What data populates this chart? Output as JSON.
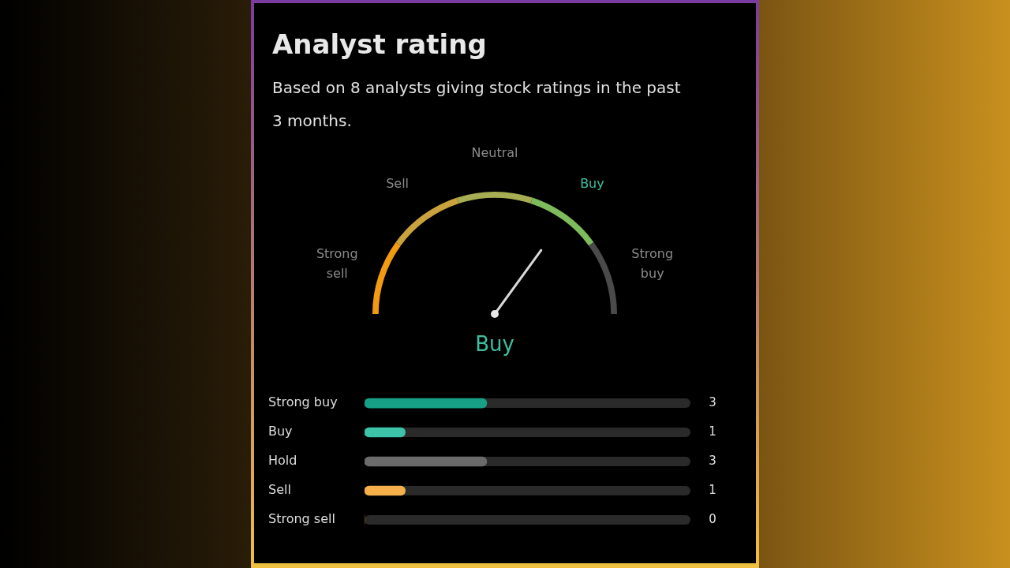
{
  "chart_data": [
    {
      "type": "donut",
      "title": "Analyst rating",
      "subtitle": "Based on 8 analysts giving stock ratings in the past 3 months.",
      "categories": [
        "Strong sell",
        "Sell",
        "Neutral",
        "Buy",
        "Strong buy"
      ],
      "values": [
        20,
        20,
        20,
        20,
        20
      ],
      "colors": [
        "#f29a12",
        "#c9a13d",
        "#a6ad52",
        "#7dbb5c",
        "#4a4a4a"
      ],
      "needle": "Buy"
    },
    {
      "type": "bar",
      "orientation": "horizontal",
      "categories": [
        "Strong buy",
        "Buy",
        "Hold",
        "Sell",
        "Strong sell"
      ],
      "values": [
        3,
        1,
        3,
        1,
        0
      ],
      "colors": [
        "#17a086",
        "#3dc4a8",
        "#6b6b6b",
        "#f5b04c",
        "#f29a12"
      ],
      "xlim": [
        0,
        8
      ],
      "data_labels": true,
      "tick_labels": "y"
    }
  ]
}
